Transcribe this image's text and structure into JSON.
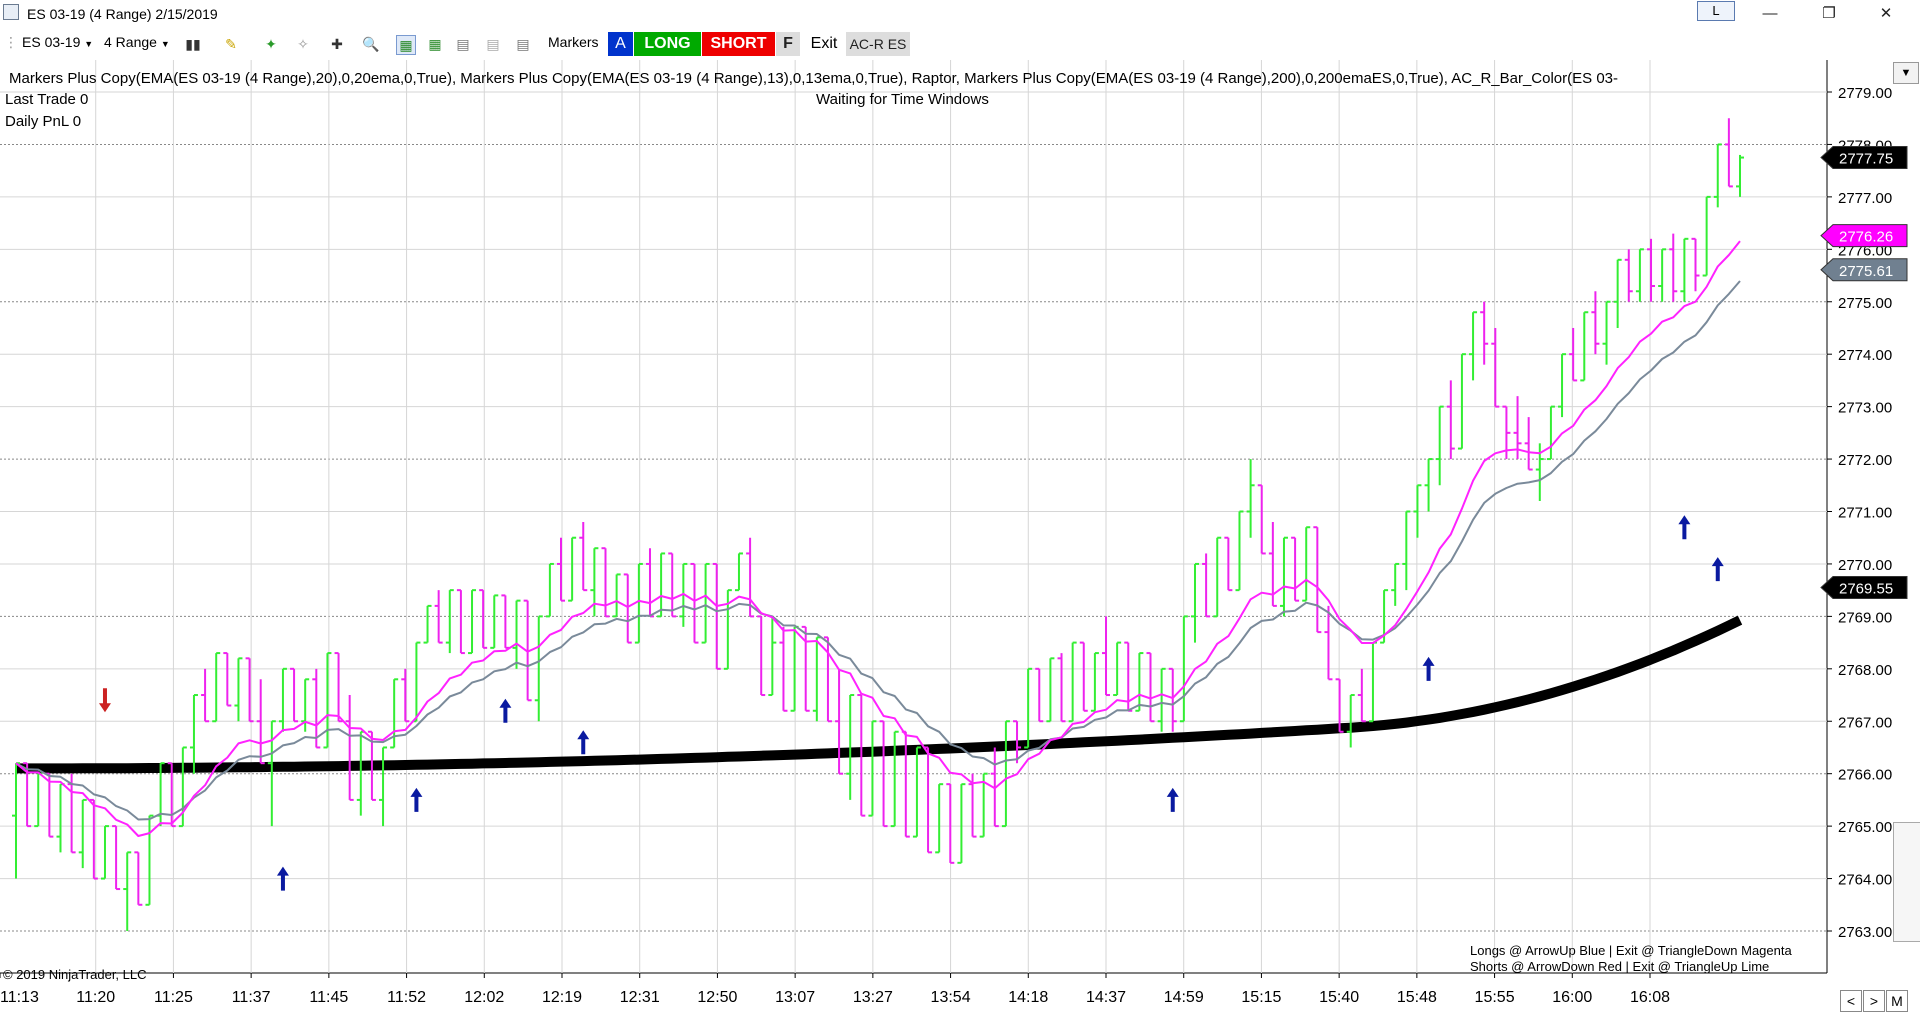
{
  "window": {
    "title": "ES 03-19 (4 Range)  2/15/2019",
    "link_label": "L"
  },
  "toolbar": {
    "instrument": "ES 03-19",
    "period": "4 Range",
    "markers_label": "Markers",
    "btn_a": "A",
    "btn_long": "LONG",
    "btn_short": "SHORT",
    "btn_f": "F",
    "exit_label": "Exit",
    "acr_label": "AC-R ES"
  },
  "indicator_line": "Markers Plus Copy(EMA(ES 03-19 (4 Range),20),0,20ema,0,True),  Markers Plus Copy(EMA(ES 03-19 (4 Range),13),0,13ema,0,True),  Raptor,  Markers Plus Copy(EMA(ES 03-19 (4 Range),200),0,200emaES,0,True),  AC_R_Bar_Color(ES 03-",
  "last_trade": "Last Trade 0",
  "daily_pnl": "Daily PnL  0",
  "waiting_text": "Waiting for Time Windows",
  "legend_longs": "Longs @ ArrowUp Blue | Exit @ TriangleDown Magenta",
  "legend_shorts": "Shorts @ ArrowDown Red | Exit @ TriangleUp Lime",
  "copyright": "© 2019 NinjaTrader, LLC",
  "price_ticks": [
    "2779.00",
    "2778.00",
    "2777.00",
    "2776.00",
    "2775.00",
    "2774.00",
    "2773.00",
    "2772.00",
    "2771.00",
    "2770.00",
    "2769.00",
    "2768.00",
    "2767.00",
    "2766.00",
    "2765.00",
    "2764.00",
    "2763.00"
  ],
  "time_labels": [
    "11:13",
    "11:20",
    "11:25",
    "11:37",
    "11:45",
    "11:52",
    "12:02",
    "12:19",
    "12:31",
    "12:50",
    "13:07",
    "13:27",
    "13:54",
    "14:18",
    "14:37",
    "14:59",
    "15:15",
    "15:40",
    "15:48",
    "15:55",
    "16:00",
    "16:08"
  ],
  "price_flags": [
    {
      "label": "2777.75",
      "value": 2777.75,
      "bg": "#000000",
      "fg": "#ffffff"
    },
    {
      "label": "2776.26",
      "value": 2776.26,
      "bg": "#ff00ff",
      "fg": "#ffffff"
    },
    {
      "label": "2775.61",
      "value": 2775.61,
      "bg": "#708090",
      "fg": "#ffffff"
    },
    {
      "label": "2769.55",
      "value": 2769.55,
      "bg": "#000000",
      "fg": "#ffffff"
    }
  ],
  "colors": {
    "up_bar": "#33ee33",
    "down_bar": "#ee22ee",
    "ema13": "#ff22ff",
    "ema20": "#7a8a9a",
    "ema200": "#000000",
    "long_arrow": "#0a1aa0",
    "short_arrow": "#cc2222"
  },
  "chart_data": {
    "type": "ohlc",
    "y_range": [
      2763,
      2779
    ],
    "bars": [
      {
        "o": 2765.2,
        "h": 2766.2,
        "l": 2764,
        "c": 2766.2
      },
      {
        "o": 2766.2,
        "h": 2766.2,
        "l": 2765,
        "c": 2765
      },
      {
        "o": 2765,
        "h": 2766,
        "l": 2765,
        "c": 2766
      },
      {
        "o": 2766,
        "h": 2766,
        "l": 2764.8,
        "c": 2764.8
      },
      {
        "o": 2764.8,
        "h": 2765.8,
        "l": 2764.5,
        "c": 2765.8
      },
      {
        "o": 2765.8,
        "h": 2766,
        "l": 2764.5,
        "c": 2764.5
      },
      {
        "o": 2764.5,
        "h": 2765.5,
        "l": 2764.2,
        "c": 2765.5
      },
      {
        "o": 2765.5,
        "h": 2765.5,
        "l": 2764,
        "c": 2764
      },
      {
        "o": 2764,
        "h": 2765,
        "l": 2764,
        "c": 2765
      },
      {
        "o": 2765,
        "h": 2765,
        "l": 2763.8,
        "c": 2763.8
      },
      {
        "o": 2763.8,
        "h": 2764.5,
        "l": 2763,
        "c": 2764.5
      },
      {
        "o": 2764.5,
        "h": 2764.5,
        "l": 2763.5,
        "c": 2763.5
      },
      {
        "o": 2763.5,
        "h": 2765.2,
        "l": 2763.5,
        "c": 2765.2
      },
      {
        "o": 2765.2,
        "h": 2766.2,
        "l": 2765,
        "c": 2766.2
      },
      {
        "o": 2766.2,
        "h": 2766.2,
        "l": 2765,
        "c": 2765
      },
      {
        "o": 2765,
        "h": 2766.5,
        "l": 2765,
        "c": 2766.5
      },
      {
        "o": 2766.5,
        "h": 2767.5,
        "l": 2766,
        "c": 2767.5
      },
      {
        "o": 2767.5,
        "h": 2768,
        "l": 2767,
        "c": 2767
      },
      {
        "o": 2767,
        "h": 2768.3,
        "l": 2767,
        "c": 2768.3
      },
      {
        "o": 2768.3,
        "h": 2768.3,
        "l": 2767.3,
        "c": 2767.3
      },
      {
        "o": 2767.3,
        "h": 2768.2,
        "l": 2767,
        "c": 2768.2
      },
      {
        "o": 2768.2,
        "h": 2768.2,
        "l": 2767,
        "c": 2767
      },
      {
        "o": 2767,
        "h": 2767.8,
        "l": 2766.2,
        "c": 2766.2
      },
      {
        "o": 2766.2,
        "h": 2767,
        "l": 2765,
        "c": 2767
      },
      {
        "o": 2767,
        "h": 2768,
        "l": 2766.8,
        "c": 2768
      },
      {
        "o": 2768,
        "h": 2768,
        "l": 2767,
        "c": 2767
      },
      {
        "o": 2767,
        "h": 2767.8,
        "l": 2766.8,
        "c": 2767.8
      },
      {
        "o": 2767.8,
        "h": 2768,
        "l": 2766.5,
        "c": 2766.5
      },
      {
        "o": 2766.5,
        "h": 2768.3,
        "l": 2766.5,
        "c": 2768.3
      },
      {
        "o": 2768.3,
        "h": 2768.3,
        "l": 2767,
        "c": 2767
      },
      {
        "o": 2767,
        "h": 2767.5,
        "l": 2765.5,
        "c": 2765.5
      },
      {
        "o": 2765.5,
        "h": 2766.8,
        "l": 2765.2,
        "c": 2766.8
      },
      {
        "o": 2766.8,
        "h": 2766.8,
        "l": 2765.5,
        "c": 2765.5
      },
      {
        "o": 2765.5,
        "h": 2766.5,
        "l": 2765,
        "c": 2766.5
      },
      {
        "o": 2766.5,
        "h": 2767.8,
        "l": 2766.5,
        "c": 2767.8
      },
      {
        "o": 2767.8,
        "h": 2768,
        "l": 2767,
        "c": 2767
      },
      {
        "o": 2767,
        "h": 2768.5,
        "l": 2767,
        "c": 2768.5
      },
      {
        "o": 2768.5,
        "h": 2769.2,
        "l": 2768.5,
        "c": 2769.2
      },
      {
        "o": 2769.2,
        "h": 2769.5,
        "l": 2768.5,
        "c": 2768.5
      },
      {
        "o": 2768.5,
        "h": 2769.5,
        "l": 2768.3,
        "c": 2769.5
      },
      {
        "o": 2769.5,
        "h": 2769.5,
        "l": 2768.3,
        "c": 2768.3
      },
      {
        "o": 2768.3,
        "h": 2769.5,
        "l": 2768.3,
        "c": 2769.5
      },
      {
        "o": 2769.5,
        "h": 2769.5,
        "l": 2768.4,
        "c": 2768.4
      },
      {
        "o": 2768.4,
        "h": 2769.4,
        "l": 2768.4,
        "c": 2769.4
      },
      {
        "o": 2769.4,
        "h": 2769.4,
        "l": 2768.4,
        "c": 2768.4
      },
      {
        "o": 2768.4,
        "h": 2769.3,
        "l": 2768,
        "c": 2769.3
      },
      {
        "o": 2769.3,
        "h": 2769.3,
        "l": 2767.4,
        "c": 2767.4
      },
      {
        "o": 2767.4,
        "h": 2769,
        "l": 2767,
        "c": 2769
      },
      {
        "o": 2769,
        "h": 2770,
        "l": 2769,
        "c": 2770
      },
      {
        "o": 2770,
        "h": 2770.5,
        "l": 2769.3,
        "c": 2769.3
      },
      {
        "o": 2769.3,
        "h": 2770.5,
        "l": 2769.3,
        "c": 2770.5
      },
      {
        "o": 2770.5,
        "h": 2770.8,
        "l": 2769.5,
        "c": 2769.5
      },
      {
        "o": 2769.5,
        "h": 2770.3,
        "l": 2769,
        "c": 2770.3
      },
      {
        "o": 2770.3,
        "h": 2770.3,
        "l": 2769,
        "c": 2769
      },
      {
        "o": 2769,
        "h": 2769.8,
        "l": 2769,
        "c": 2769.8
      },
      {
        "o": 2769.8,
        "h": 2769.8,
        "l": 2768.5,
        "c": 2768.5
      },
      {
        "o": 2768.5,
        "h": 2770,
        "l": 2768.5,
        "c": 2770
      },
      {
        "o": 2770,
        "h": 2770.3,
        "l": 2769,
        "c": 2769
      },
      {
        "o": 2769,
        "h": 2770.2,
        "l": 2769,
        "c": 2770.2
      },
      {
        "o": 2770.2,
        "h": 2770.2,
        "l": 2769,
        "c": 2769
      },
      {
        "o": 2769,
        "h": 2770,
        "l": 2768.8,
        "c": 2770
      },
      {
        "o": 2770,
        "h": 2770,
        "l": 2768.5,
        "c": 2768.5
      },
      {
        "o": 2768.5,
        "h": 2770,
        "l": 2768.5,
        "c": 2770
      },
      {
        "o": 2770,
        "h": 2770,
        "l": 2768,
        "c": 2768
      },
      {
        "o": 2768,
        "h": 2769.5,
        "l": 2768,
        "c": 2769.5
      },
      {
        "o": 2769.5,
        "h": 2770.2,
        "l": 2769.5,
        "c": 2770.2
      },
      {
        "o": 2770.2,
        "h": 2770.5,
        "l": 2769,
        "c": 2769
      },
      {
        "o": 2769,
        "h": 2769,
        "l": 2767.5,
        "c": 2767.5
      },
      {
        "o": 2767.5,
        "h": 2769,
        "l": 2767.5,
        "c": 2768.5
      },
      {
        "o": 2768.5,
        "h": 2768.8,
        "l": 2767.2,
        "c": 2767.2
      },
      {
        "o": 2767.2,
        "h": 2768.8,
        "l": 2767.2,
        "c": 2768.8
      },
      {
        "o": 2768.8,
        "h": 2768.8,
        "l": 2767.2,
        "c": 2767.2
      },
      {
        "o": 2767.2,
        "h": 2768.6,
        "l": 2767,
        "c": 2768.6
      },
      {
        "o": 2768.6,
        "h": 2768.6,
        "l": 2767,
        "c": 2767
      },
      {
        "o": 2767,
        "h": 2768,
        "l": 2766,
        "c": 2766
      },
      {
        "o": 2766,
        "h": 2767.5,
        "l": 2765.5,
        "c": 2767.5
      },
      {
        "o": 2767.5,
        "h": 2767.5,
        "l": 2765.2,
        "c": 2765.2
      },
      {
        "o": 2765.2,
        "h": 2767,
        "l": 2765.2,
        "c": 2767
      },
      {
        "o": 2767,
        "h": 2767,
        "l": 2765,
        "c": 2765
      },
      {
        "o": 2765,
        "h": 2766.8,
        "l": 2765,
        "c": 2766.8
      },
      {
        "o": 2766.8,
        "h": 2766.8,
        "l": 2764.8,
        "c": 2764.8
      },
      {
        "o": 2764.8,
        "h": 2766.5,
        "l": 2764.8,
        "c": 2766.5
      },
      {
        "o": 2766.5,
        "h": 2766.5,
        "l": 2764.5,
        "c": 2764.5
      },
      {
        "o": 2764.5,
        "h": 2765.8,
        "l": 2764.5,
        "c": 2765.8
      },
      {
        "o": 2765.8,
        "h": 2765.8,
        "l": 2764.3,
        "c": 2764.3
      },
      {
        "o": 2764.3,
        "h": 2765.8,
        "l": 2764.3,
        "c": 2765.8
      },
      {
        "o": 2765.8,
        "h": 2766,
        "l": 2764.8,
        "c": 2764.8
      },
      {
        "o": 2764.8,
        "h": 2766,
        "l": 2764.8,
        "c": 2766
      },
      {
        "o": 2766,
        "h": 2766.5,
        "l": 2765,
        "c": 2765
      },
      {
        "o": 2765,
        "h": 2767,
        "l": 2765,
        "c": 2767
      },
      {
        "o": 2767,
        "h": 2767,
        "l": 2766.2,
        "c": 2766.5
      },
      {
        "o": 2766.5,
        "h": 2768,
        "l": 2766.5,
        "c": 2768
      },
      {
        "o": 2768,
        "h": 2768,
        "l": 2767,
        "c": 2767
      },
      {
        "o": 2767,
        "h": 2768.2,
        "l": 2767,
        "c": 2768.2
      },
      {
        "o": 2768.2,
        "h": 2768.3,
        "l": 2767,
        "c": 2767
      },
      {
        "o": 2767,
        "h": 2768.5,
        "l": 2767,
        "c": 2768.5
      },
      {
        "o": 2768.5,
        "h": 2768.5,
        "l": 2767.2,
        "c": 2767.2
      },
      {
        "o": 2767.2,
        "h": 2768.3,
        "l": 2767.2,
        "c": 2768.3
      },
      {
        "o": 2768.3,
        "h": 2769,
        "l": 2767.5,
        "c": 2767.5
      },
      {
        "o": 2767.5,
        "h": 2768.5,
        "l": 2767.5,
        "c": 2768.5
      },
      {
        "o": 2768.5,
        "h": 2768.5,
        "l": 2767.2,
        "c": 2767.2
      },
      {
        "o": 2767.2,
        "h": 2768.3,
        "l": 2767.2,
        "c": 2768.3
      },
      {
        "o": 2768.3,
        "h": 2768.3,
        "l": 2767,
        "c": 2767
      },
      {
        "o": 2767,
        "h": 2768,
        "l": 2766.8,
        "c": 2768
      },
      {
        "o": 2768,
        "h": 2768,
        "l": 2766.8,
        "c": 2767
      },
      {
        "o": 2767,
        "h": 2769,
        "l": 2767,
        "c": 2769
      },
      {
        "o": 2769,
        "h": 2770,
        "l": 2768.5,
        "c": 2770
      },
      {
        "o": 2770,
        "h": 2770.2,
        "l": 2769,
        "c": 2769
      },
      {
        "o": 2769,
        "h": 2770.5,
        "l": 2769,
        "c": 2770.5
      },
      {
        "o": 2770.5,
        "h": 2770.5,
        "l": 2769.5,
        "c": 2769.5
      },
      {
        "o": 2769.5,
        "h": 2771,
        "l": 2769.5,
        "c": 2771
      },
      {
        "o": 2771,
        "h": 2772,
        "l": 2770.5,
        "c": 2771.5
      },
      {
        "o": 2771.5,
        "h": 2771.5,
        "l": 2770.2,
        "c": 2770.2
      },
      {
        "o": 2770.2,
        "h": 2770.8,
        "l": 2769.2,
        "c": 2769.2
      },
      {
        "o": 2769.2,
        "h": 2770.5,
        "l": 2769,
        "c": 2770.5
      },
      {
        "o": 2770.5,
        "h": 2770.5,
        "l": 2769.3,
        "c": 2769.3
      },
      {
        "o": 2769.3,
        "h": 2770.7,
        "l": 2769.3,
        "c": 2770.7
      },
      {
        "o": 2770.7,
        "h": 2770.7,
        "l": 2768.7,
        "c": 2768.7
      },
      {
        "o": 2768.7,
        "h": 2769.2,
        "l": 2767.8,
        "c": 2767.8
      },
      {
        "o": 2767.8,
        "h": 2767.8,
        "l": 2766.8,
        "c": 2766.8
      },
      {
        "o": 2766.8,
        "h": 2767.5,
        "l": 2766.5,
        "c": 2767.5
      },
      {
        "o": 2767.5,
        "h": 2768,
        "l": 2767,
        "c": 2767
      },
      {
        "o": 2767,
        "h": 2768.5,
        "l": 2767,
        "c": 2768.5
      },
      {
        "o": 2768.5,
        "h": 2769.5,
        "l": 2768.5,
        "c": 2769.5
      },
      {
        "o": 2769.5,
        "h": 2770,
        "l": 2769.2,
        "c": 2770
      },
      {
        "o": 2770,
        "h": 2771,
        "l": 2769.5,
        "c": 2771
      },
      {
        "o": 2771,
        "h": 2771.5,
        "l": 2770.5,
        "c": 2771.5
      },
      {
        "o": 2771.5,
        "h": 2772,
        "l": 2771,
        "c": 2772
      },
      {
        "o": 2772,
        "h": 2773,
        "l": 2771.5,
        "c": 2773
      },
      {
        "o": 2773,
        "h": 2773.5,
        "l": 2772,
        "c": 2772.2
      },
      {
        "o": 2772.2,
        "h": 2774,
        "l": 2772.2,
        "c": 2774
      },
      {
        "o": 2774,
        "h": 2774.8,
        "l": 2773.5,
        "c": 2774.8
      },
      {
        "o": 2774.8,
        "h": 2775,
        "l": 2773.8,
        "c": 2774.2
      },
      {
        "o": 2774.2,
        "h": 2774.5,
        "l": 2773,
        "c": 2773
      },
      {
        "o": 2773,
        "h": 2773,
        "l": 2772,
        "c": 2772.5
      },
      {
        "o": 2772.5,
        "h": 2773.2,
        "l": 2772,
        "c": 2772.3
      },
      {
        "o": 2772.3,
        "h": 2772.8,
        "l": 2771.8,
        "c": 2771.8
      },
      {
        "o": 2771.8,
        "h": 2772.3,
        "l": 2771.2,
        "c": 2772
      },
      {
        "o": 2772,
        "h": 2773,
        "l": 2772,
        "c": 2773
      },
      {
        "o": 2773,
        "h": 2774,
        "l": 2772.8,
        "c": 2774
      },
      {
        "o": 2774,
        "h": 2774.5,
        "l": 2773.5,
        "c": 2773.5
      },
      {
        "o": 2773.5,
        "h": 2774.8,
        "l": 2773.5,
        "c": 2774.8
      },
      {
        "o": 2774.8,
        "h": 2775.2,
        "l": 2774,
        "c": 2774.2
      },
      {
        "o": 2774.2,
        "h": 2775,
        "l": 2773.8,
        "c": 2775
      },
      {
        "o": 2775,
        "h": 2775.8,
        "l": 2774.5,
        "c": 2775.8
      },
      {
        "o": 2775.8,
        "h": 2776,
        "l": 2775,
        "c": 2775.2
      },
      {
        "o": 2775.2,
        "h": 2776,
        "l": 2775,
        "c": 2776
      },
      {
        "o": 2776,
        "h": 2776.2,
        "l": 2775,
        "c": 2775.3
      },
      {
        "o": 2775.3,
        "h": 2776,
        "l": 2775,
        "c": 2776
      },
      {
        "o": 2776,
        "h": 2776.3,
        "l": 2775,
        "c": 2775.2
      },
      {
        "o": 2775.2,
        "h": 2776.2,
        "l": 2775,
        "c": 2776.2
      },
      {
        "o": 2776.2,
        "h": 2776.2,
        "l": 2775.2,
        "c": 2775.5
      },
      {
        "o": 2775.5,
        "h": 2777,
        "l": 2775.5,
        "c": 2777
      },
      {
        "o": 2777,
        "h": 2778,
        "l": 2776.8,
        "c": 2778
      },
      {
        "o": 2778,
        "h": 2778.5,
        "l": 2777.2,
        "c": 2777.2
      },
      {
        "o": 2777.2,
        "h": 2777.8,
        "l": 2777,
        "c": 2777.75
      }
    ],
    "long_arrows": [
      {
        "bar": 24,
        "price": 2764
      },
      {
        "bar": 36,
        "price": 2765.5
      },
      {
        "bar": 44,
        "price": 2767.2
      },
      {
        "bar": 51,
        "price": 2766.6
      },
      {
        "bar": 104,
        "price": 2765.5
      },
      {
        "bar": 127,
        "price": 2768
      },
      {
        "bar": 150,
        "price": 2770.7
      },
      {
        "bar": 153,
        "price": 2769.9
      }
    ],
    "short_arrows": [
      {
        "bar": 8,
        "price": 2767.4
      }
    ]
  }
}
